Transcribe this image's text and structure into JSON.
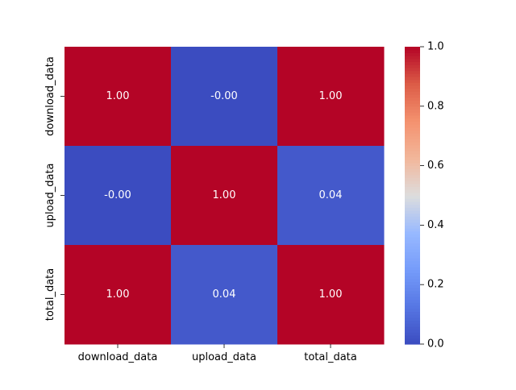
{
  "chart_data": {
    "type": "heatmap",
    "title": "",
    "xlabel": "",
    "ylabel": "",
    "x_categories": [
      "download_data",
      "upload_data",
      "total_data"
    ],
    "y_categories": [
      "download_data",
      "upload_data",
      "total_data"
    ],
    "values": [
      [
        1.0,
        -0.0,
        1.0
      ],
      [
        -0.0,
        1.0,
        0.04
      ],
      [
        1.0,
        0.04,
        1.0
      ]
    ],
    "annotations": [
      [
        "1.00",
        "-0.00",
        "1.00"
      ],
      [
        "-0.00",
        "1.00",
        "0.04"
      ],
      [
        "1.00",
        "0.04",
        "1.00"
      ]
    ],
    "colormap": "coolwarm",
    "vmin": 0.0,
    "vmax": 1.0,
    "colorbar": {
      "ticks": [
        "0.0",
        "0.2",
        "0.4",
        "0.6",
        "0.8",
        "1.0"
      ]
    },
    "annotation_color": "#ffffff",
    "grid": false
  }
}
